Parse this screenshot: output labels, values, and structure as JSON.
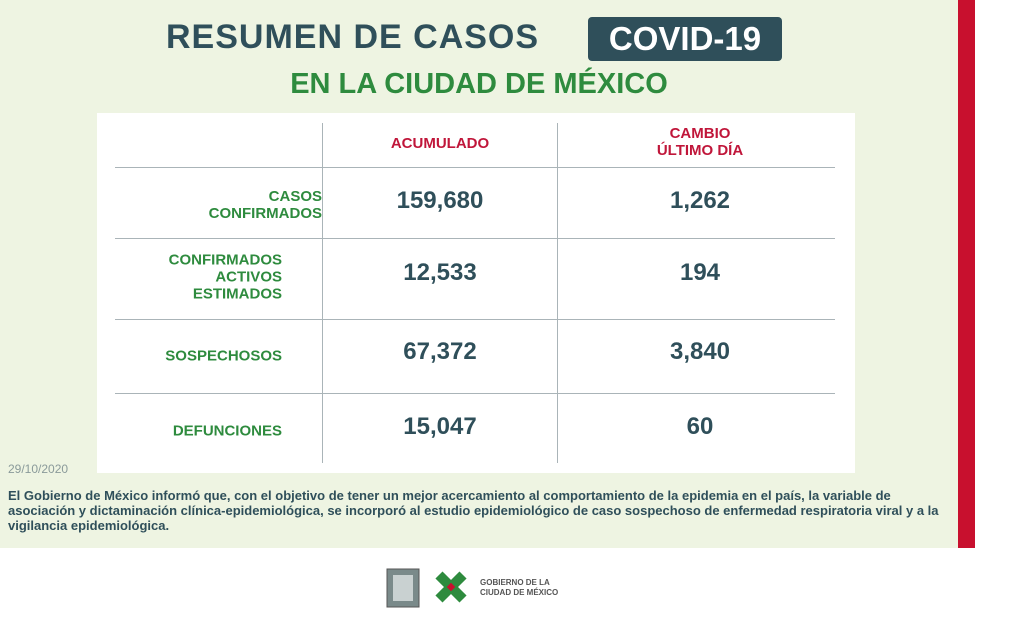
{
  "header": {
    "title": "RESUMEN DE CASOS",
    "badge": "COVID-19",
    "subtitle": "EN LA CIUDAD DE MÉXICO"
  },
  "table": {
    "columns": [
      "ACUMULADO",
      "CAMBIO ÚLTIMO DÍA"
    ],
    "rows": [
      [
        "CASOS CONFIRMADOS",
        "159,680",
        "1,262"
      ],
      [
        "CONFIRMADOS ACTIVOS ESTIMADOS",
        "12,533",
        "194"
      ],
      [
        "SOSPECHOSOS",
        "67,372",
        "3,840"
      ],
      [
        "DEFUNCIONES",
        "15,047",
        "60"
      ]
    ]
  },
  "date": "29/10/2020",
  "note": "El Gobierno de México informó que, con el objetivo de tener un mejor acercamiento al comportamiento de la epidemia en el país, la variable de asociación y dictaminación clínica-epidemiológica, se incorporó al estudio epidemiológico de caso sospechoso de enfermedad respiratoria viral y a la vigilancia epidemiológica.",
  "logo": "GOBIERNO DE LA CIUDAD DE MÉXICO"
}
